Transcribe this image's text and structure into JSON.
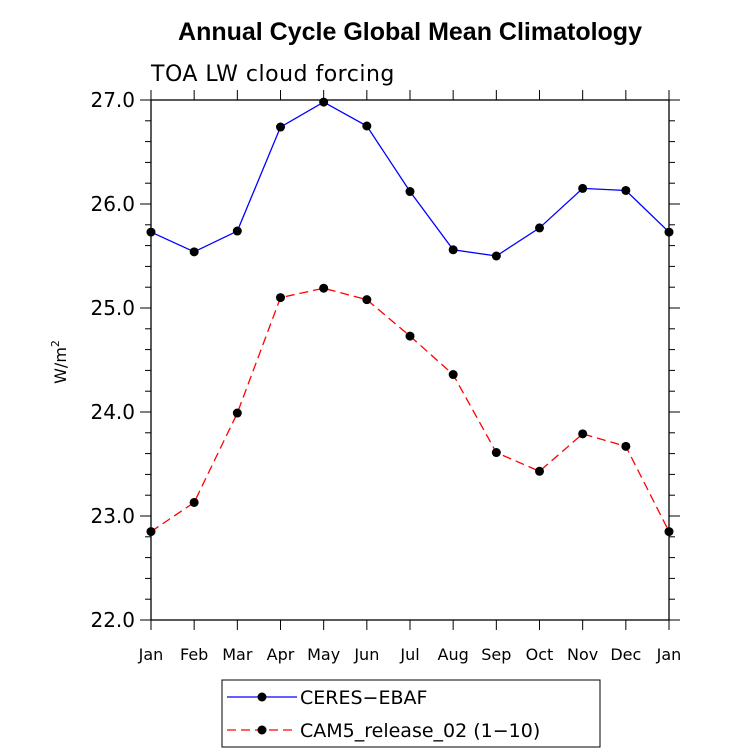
{
  "chart_data": {
    "type": "line",
    "title": "Annual Cycle Global Mean Climatology",
    "subtitle": "TOA LW cloud forcing",
    "ylabel": "W/m",
    "ylabel_sup": "2",
    "ylim": [
      22.0,
      27.0
    ],
    "yticks": [
      "22.0",
      "23.0",
      "24.0",
      "25.0",
      "26.0",
      "27.0"
    ],
    "categories": [
      "Jan",
      "Feb",
      "Mar",
      "Apr",
      "May",
      "Jun",
      "Jul",
      "Aug",
      "Sep",
      "Oct",
      "Nov",
      "Dec",
      "Jan"
    ],
    "series": [
      {
        "name": "CERES−EBAF",
        "color": "#0000ff",
        "dash": "solid",
        "values": [
          25.73,
          25.54,
          25.74,
          26.74,
          26.98,
          26.75,
          26.12,
          25.56,
          25.5,
          25.77,
          26.15,
          26.13,
          25.73
        ]
      },
      {
        "name": "CAM5_release_02 (1−10)",
        "color": "#ff0000",
        "dash": "dashed",
        "values": [
          22.85,
          23.13,
          23.99,
          25.1,
          25.19,
          25.08,
          24.73,
          24.36,
          23.61,
          23.43,
          23.79,
          23.67,
          22.85
        ]
      }
    ],
    "grid": false,
    "legend_position": "bottom"
  }
}
